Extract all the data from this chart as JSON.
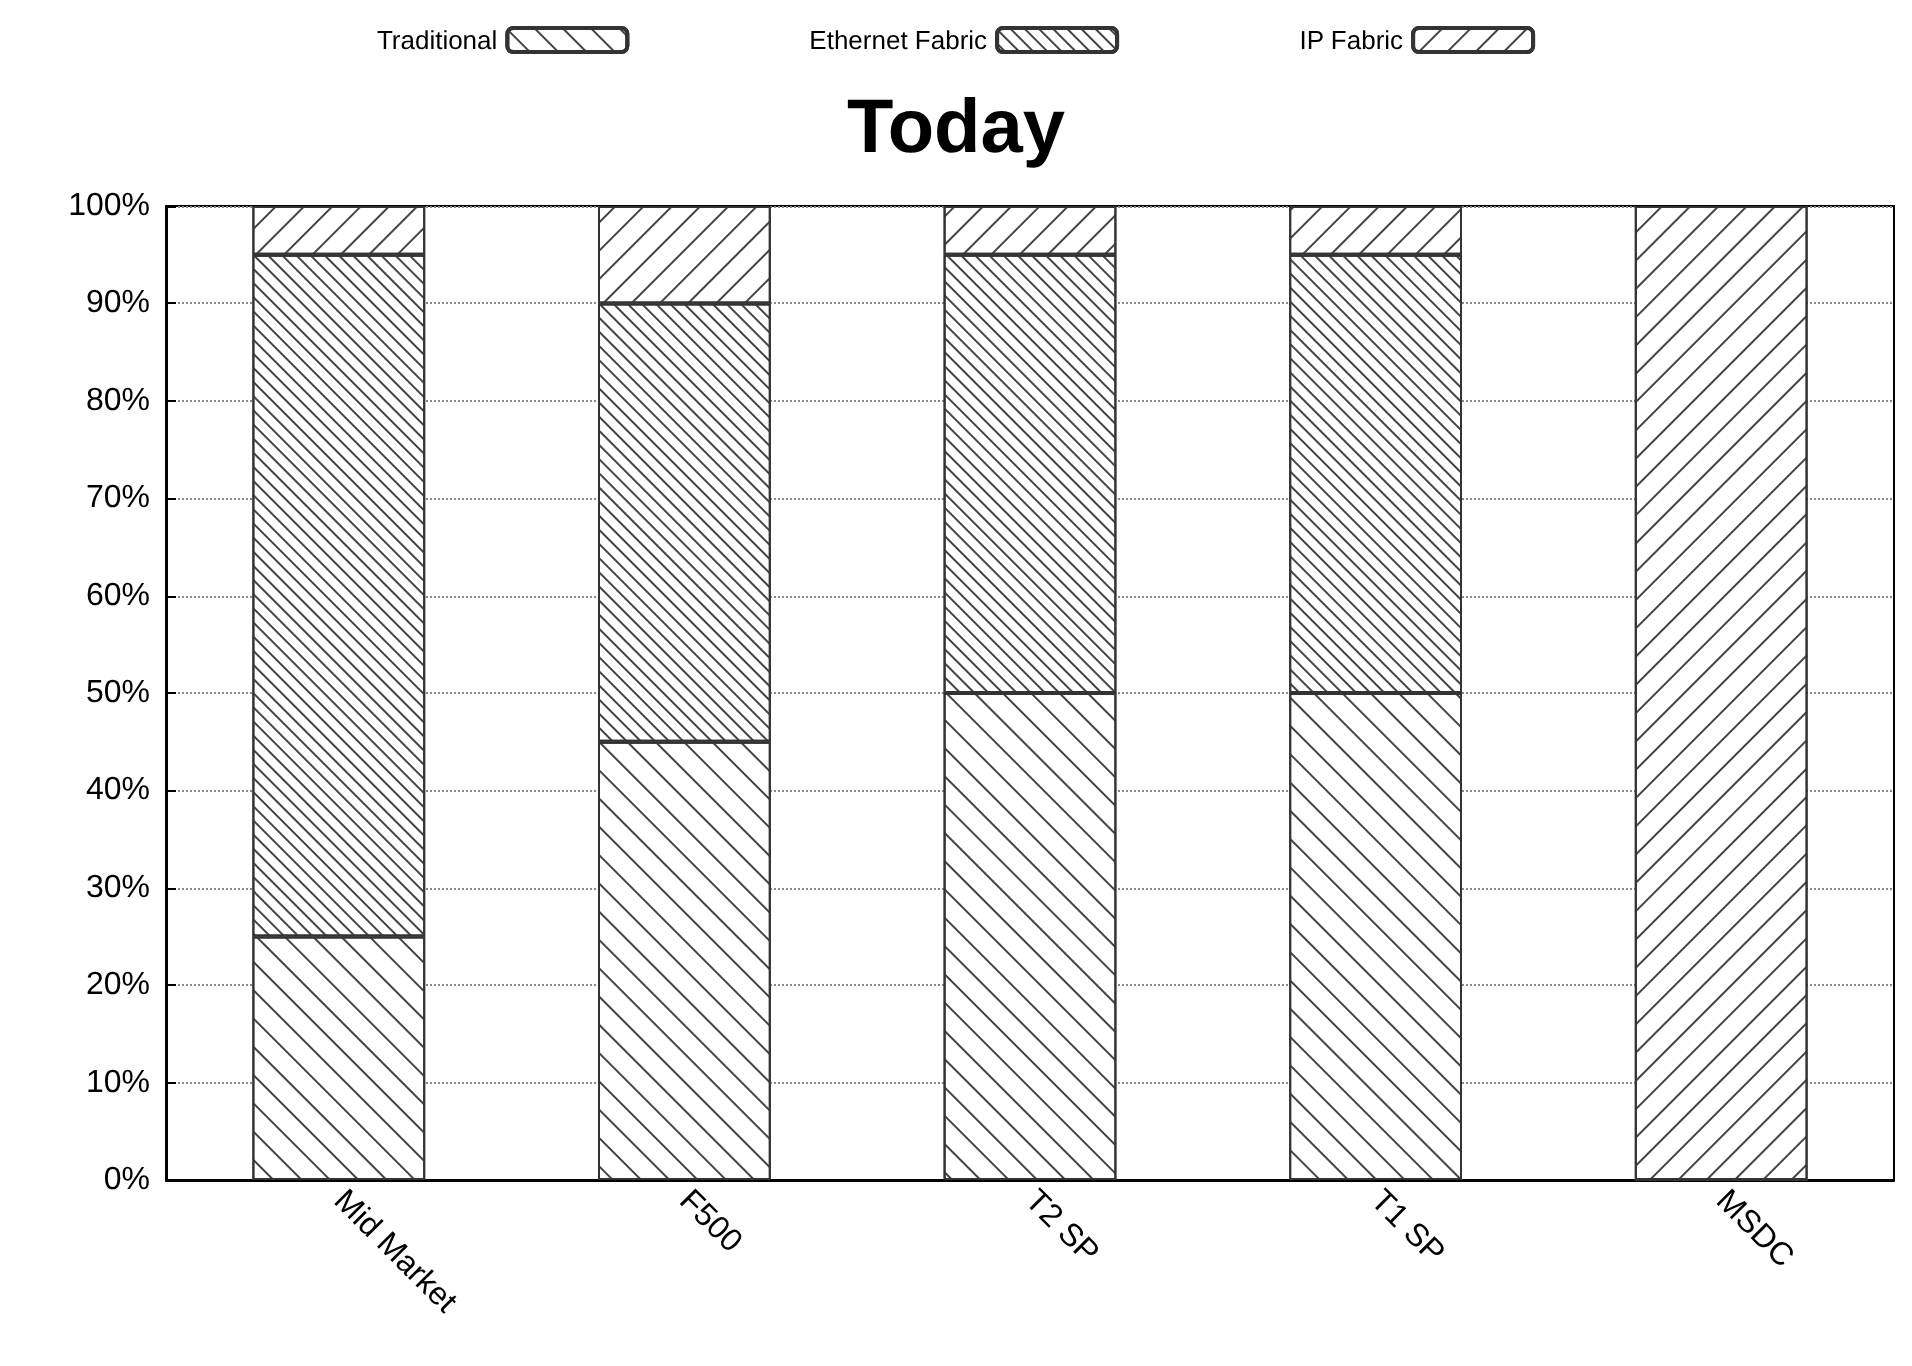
{
  "chart_data": {
    "type": "bar",
    "title": "Today",
    "stacked": true,
    "categories": [
      "Mid Market",
      "F500",
      "T2 SP",
      "T1 SP",
      "MSDC"
    ],
    "series": [
      {
        "name": "Traditional",
        "color": "#ffffff",
        "values": [
          25,
          45,
          50,
          50,
          0
        ]
      },
      {
        "name": "Ethernet Fabric",
        "color": "#ffffff",
        "values": [
          70,
          45,
          45,
          45,
          0
        ]
      },
      {
        "name": "IP Fabric",
        "color": "#ffffff",
        "values": [
          5,
          10,
          5,
          5,
          100
        ]
      }
    ],
    "ylim": [
      0,
      100
    ],
    "yticks": [
      {
        "value": 0,
        "label": "0%"
      },
      {
        "value": 10,
        "label": "10%"
      },
      {
        "value": 20,
        "label": "20%"
      },
      {
        "value": 30,
        "label": "30%"
      },
      {
        "value": 40,
        "label": "40%"
      },
      {
        "value": 50,
        "label": "50%"
      },
      {
        "value": 60,
        "label": "60%"
      },
      {
        "value": 70,
        "label": "70%"
      },
      {
        "value": 80,
        "label": "80%"
      },
      {
        "value": 90,
        "label": "90%"
      },
      {
        "value": 100,
        "label": "100%"
      }
    ],
    "grid": "y",
    "legend": "top"
  }
}
